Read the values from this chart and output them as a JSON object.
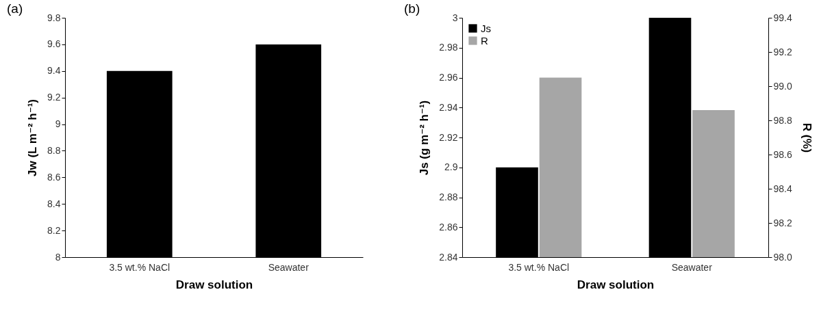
{
  "chart_data": [
    {
      "type": "bar",
      "title": "(a)",
      "categories": [
        "3.5 wt.% NaCl",
        "Seawater"
      ],
      "xlabel": "Draw solution",
      "ylabel": "Jw (L m⁻² h⁻¹)",
      "series": [
        {
          "color": "#000000",
          "values": [
            9.4,
            9.6
          ]
        }
      ],
      "ylim": [
        8,
        9.8
      ],
      "yticks": [
        8,
        8.2,
        8.4,
        8.6,
        8.8,
        9,
        9.2,
        9.4,
        9.6,
        9.8
      ]
    },
    {
      "type": "bar",
      "title": "(b)",
      "categories": [
        "3.5 wt.% NaCl",
        "Seawater"
      ],
      "xlabel": "Draw solution",
      "ylabel": "Js (g m⁻² h⁻¹)",
      "y2label": "R (%)",
      "series": [
        {
          "name": "Js",
          "color": "#000000",
          "values": [
            2.9,
            3.0
          ]
        },
        {
          "name": "R",
          "color": "#a6a6a6",
          "values": [
            99.05,
            98.86
          ],
          "axis": "y2"
        }
      ],
      "ylim": [
        2.84,
        3.0
      ],
      "yticks": [
        2.84,
        2.86,
        2.88,
        2.9,
        2.92,
        2.94,
        2.96,
        2.98,
        3
      ],
      "y2lim": [
        98.0,
        99.4
      ],
      "y2ticks": [
        {
          "value": 98,
          "label": "98.0"
        },
        {
          "value": 98.2,
          "label": "98.2"
        },
        {
          "value": 98.4,
          "label": "98.4"
        },
        {
          "value": 98.6,
          "label": "98.6"
        },
        {
          "value": 98.8,
          "label": "98.8"
        },
        {
          "value": 99,
          "label": "99.0"
        },
        {
          "value": 99.2,
          "label": "99.2"
        },
        {
          "value": 99.4,
          "label": "99.4"
        }
      ],
      "legend": "top left"
    }
  ]
}
